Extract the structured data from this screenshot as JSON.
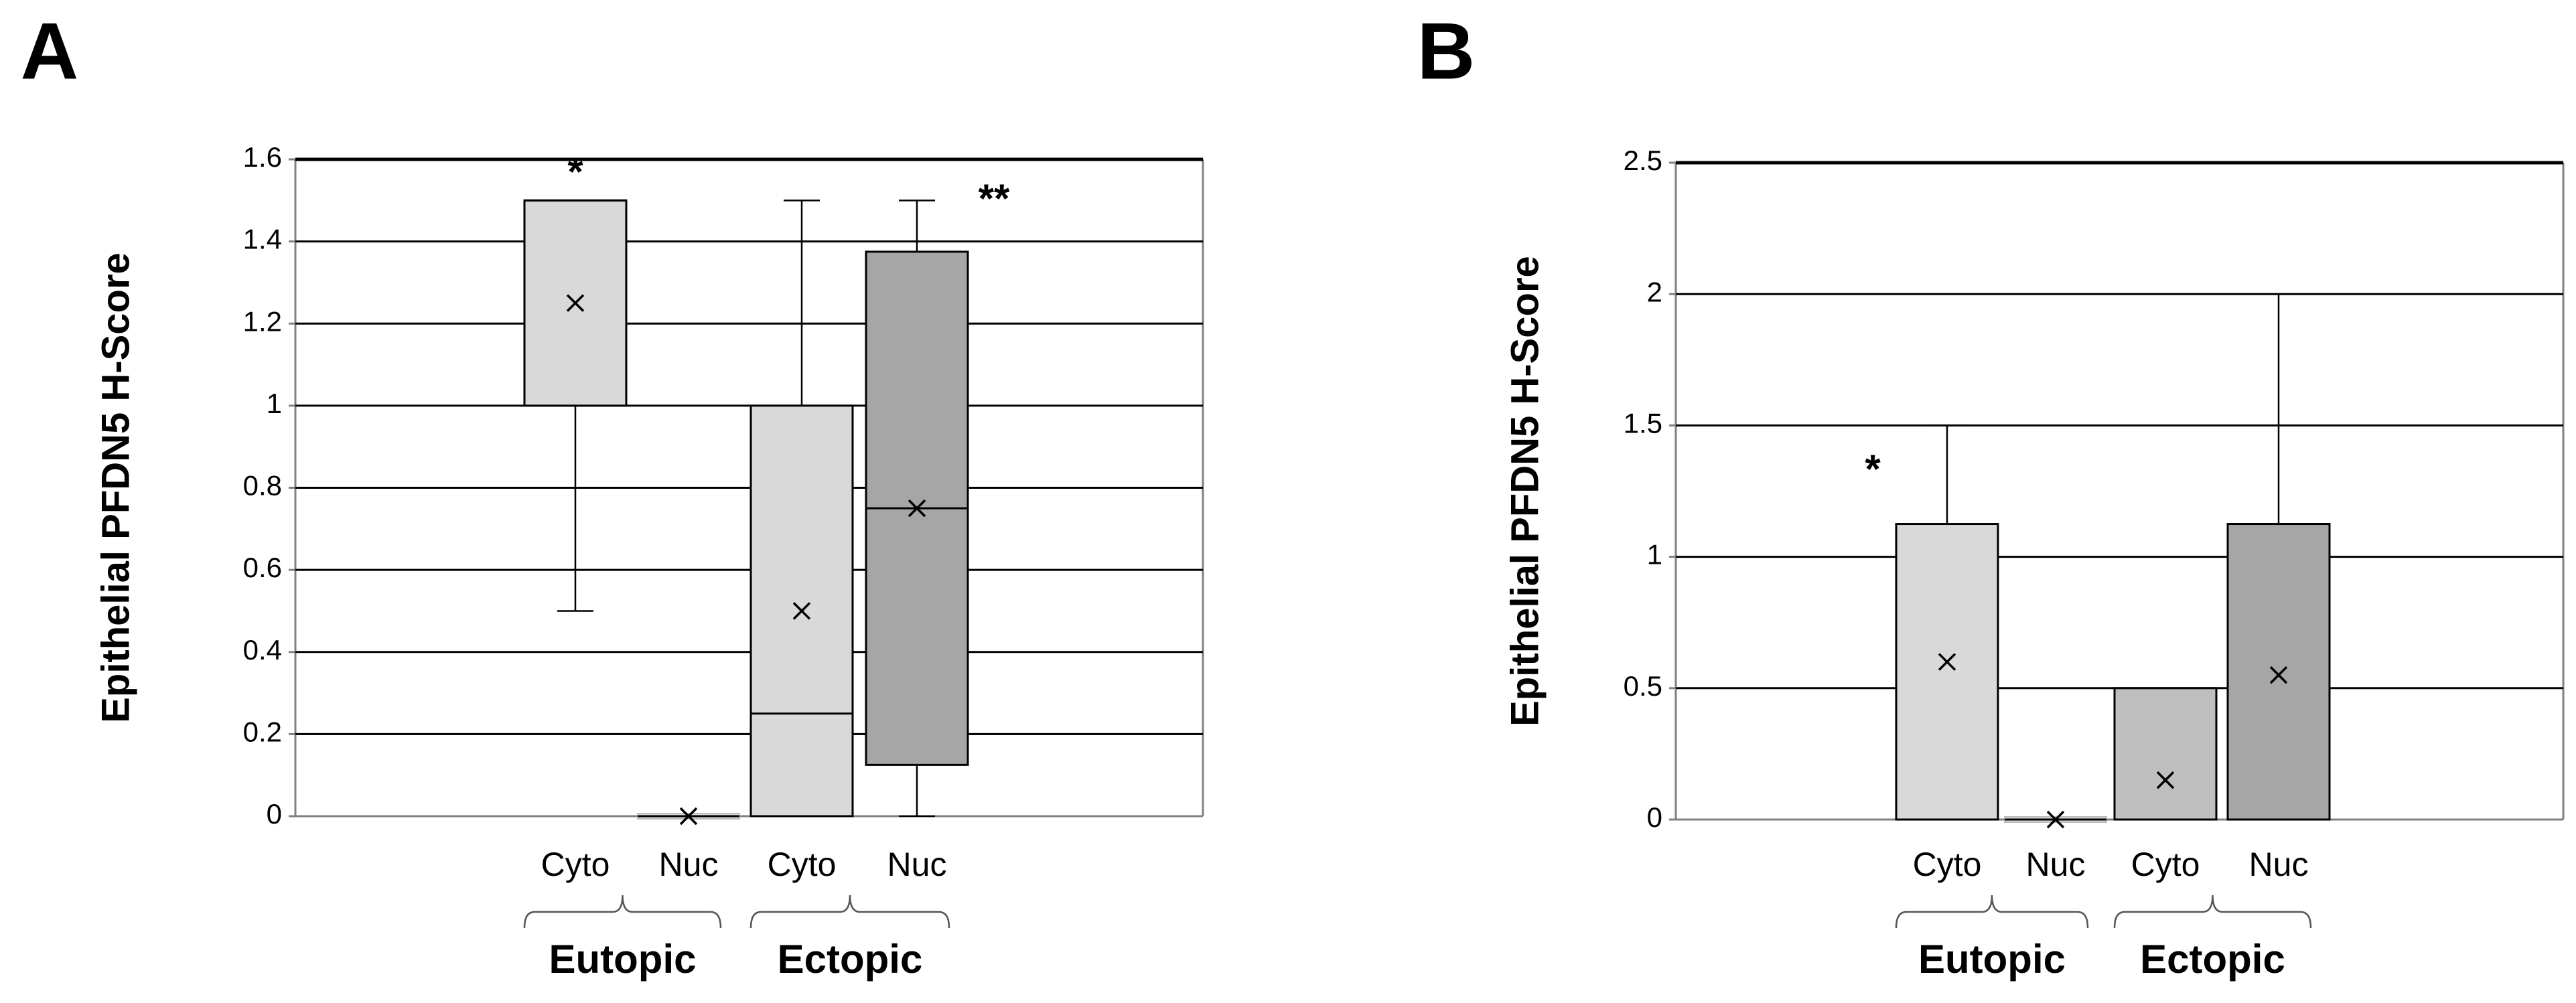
{
  "chart_data": [
    {
      "type": "box",
      "panel": "A",
      "ylabel": "Epithelial  PFDN5 H-Score",
      "ylim": [
        0,
        1.6
      ],
      "yticks": [
        0,
        0.2,
        0.4,
        0.6,
        0.8,
        1,
        1.2,
        1.4,
        1.6
      ],
      "categories": [
        "Cyto",
        "Nuc",
        "Cyto",
        "Nuc"
      ],
      "groups": [
        "Eutopic",
        "Ectopic"
      ],
      "boxes": [
        {
          "min": 0.5,
          "q1": 1,
          "median": 1.5,
          "q3": 1.5,
          "max": 1.5,
          "mean": 1.25,
          "color": "#d9d9d9"
        },
        {
          "min": 0,
          "q1": 0,
          "median": 0,
          "q3": 0,
          "max": 0,
          "mean": 0,
          "color": "#d9d9d9"
        },
        {
          "min": 0,
          "q1": 0,
          "median": 0.25,
          "q3": 1,
          "max": 1.5,
          "mean": 0.5,
          "color": "#d9d9d9"
        },
        {
          "min": 0,
          "q1": 0.125,
          "median": 0.75,
          "q3": 1.375,
          "max": 1.5,
          "mean": 0.75,
          "color": "#a6a6a6"
        }
      ],
      "annotations": [
        "*",
        "**"
      ],
      "grid": true
    },
    {
      "type": "box",
      "panel": "B",
      "ylabel": "Epithelial  PFDN5 H-Score",
      "ylim": [
        0,
        2.5
      ],
      "yticks": [
        0,
        0.5,
        1,
        1.5,
        2,
        2.5
      ],
      "categories": [
        "Cyto",
        "Nuc",
        "Cyto",
        "Nuc"
      ],
      "groups": [
        "Eutopic",
        "Ectopic"
      ],
      "boxes": [
        {
          "min": 0,
          "q1": 0,
          "median": 0,
          "q3": 1.125,
          "max": 1.5,
          "mean": 0.6,
          "color": "#d9d9d9"
        },
        {
          "min": 0,
          "q1": 0,
          "median": 0,
          "q3": 0,
          "max": 0,
          "mean": 0,
          "color": "#d9d9d9"
        },
        {
          "min": 0,
          "q1": 0,
          "median": 0,
          "q3": 0.5,
          "max": 0.5,
          "mean": 0.15,
          "color": "#bfbfbf"
        },
        {
          "min": 0,
          "q1": 0,
          "median": 0,
          "q3": 1.125,
          "max": 2,
          "mean": 0.55,
          "color": "#a6a6a6"
        }
      ],
      "annotations": [
        "*"
      ],
      "grid": true
    }
  ]
}
